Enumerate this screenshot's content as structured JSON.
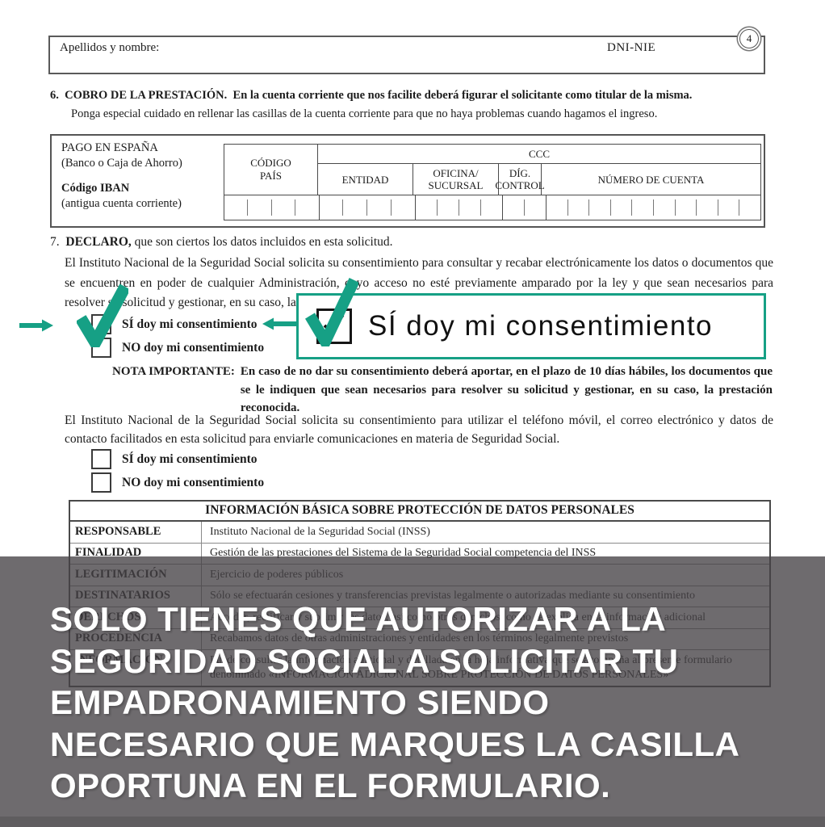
{
  "header": {
    "apellidos_label": "Apellidos y nombre:",
    "dni_label": "DNI-NIE",
    "page_number": "4"
  },
  "section6": {
    "number": "6.",
    "title": "COBRO DE LA PRESTACIÓN.",
    "title_rest": "En la cuenta corriente que nos facilite deberá figurar el solicitante como titular de la misma.",
    "subtitle": "Ponga especial cuidado en rellenar las casillas de la cuenta corriente para que no haya problemas cuando hagamos el ingreso."
  },
  "bank": {
    "pago_line1": "PAGO EN ESPAÑA",
    "pago_line2": "(Banco o Caja de Ahorro)",
    "iban_label": "Código IBAN",
    "iban_sub": "(antigua cuenta corriente)",
    "col_codigo_l1": "CÓDIGO",
    "col_codigo_l2": "PAÍS",
    "col_ccc": "CCC",
    "col_entidad": "ENTIDAD",
    "col_oficina_l1": "OFICINA/",
    "col_oficina_l2": "SUCURSAL",
    "col_dig_l1": "DÍG.",
    "col_dig_l2": "CONTROL",
    "col_cuenta": "NÚMERO DE CUENTA",
    "digit_groups": [
      4,
      4,
      4,
      2,
      10
    ]
  },
  "section7": {
    "number": "7.",
    "title": "DECLARO,",
    "title_rest": "que son ciertos los datos incluidos en esta solicitud.",
    "paragraph1": "El Instituto Nacional de la Seguridad Social solicita su consentimiento para consultar y recabar electrónicamente los datos o documentos que se encuentren en poder de cualquier Administración, cuyo acceso no esté previamente amparado por la ley y que sean necesarios para resolver su solicitud y gestionar, en su caso, la prestación reconocida.",
    "consent1_yes": "SÍ doy mi consentimiento",
    "consent1_no": "NO doy mi consentimiento",
    "nota_label": "NOTA IMPORTANTE:",
    "nota_text": "En caso de no dar su consentimiento deberá aportar, en el plazo de 10 días hábiles, los documentos que se le indiquen que sean necesarios para resolver su solicitud y gestionar, en su caso, la prestación reconocida.",
    "paragraph2": "El Instituto Nacional de la Seguridad Social solicita su consentimiento para utilizar el teléfono móvil, el correo electrónico y datos de contacto facilitados en esta solicitud para enviarle comunicaciones en materia de Seguridad Social.",
    "consent2_yes": "SÍ doy mi consentimiento",
    "consent2_no": "NO doy mi consentimiento"
  },
  "callout": {
    "text": "SÍ doy mi consentimiento"
  },
  "protection_table": {
    "title": "INFORMACIÓN BÁSICA SOBRE PROTECCIÓN DE DATOS PERSONALES",
    "rows": [
      {
        "label": "RESPONSABLE",
        "value": "Instituto Nacional de la Seguridad Social (INSS)"
      },
      {
        "label": "FINALIDAD",
        "value": "Gestión de las prestaciones del Sistema de la Seguridad Social competencia del INSS"
      },
      {
        "label": "LEGITIMACIÓN",
        "value": "Ejercicio de poderes públicos"
      },
      {
        "label": "DESTINATARIOS",
        "value": "Sólo se efectuarán cesiones y transferencias previstas legalmente o autorizadas mediante su consentimiento"
      },
      {
        "label": "DERECHOS",
        "value": "Acceder, rectificar y suprimir los datos, así como otros derechos, como se explica en la información adicional"
      },
      {
        "label": "PROCEDENCIA",
        "value": "Recabamos datos de otras administraciones y entidades en los términos legalmente previstos"
      },
      {
        "label": "INFORMACIÓN",
        "value": "Puede consultar la información adicional y detallada en la hoja informativa que se acompaña al presente formulario denominado «INFORMACIÓN ADICIONAL SOBRE PROTECCIÓN DE DATOS PERSONALES»"
      }
    ]
  },
  "overlay": {
    "lines": [
      "SOLO TIENES QUE AUTORIZAR A LA",
      "SEGURIDAD SOCIAL A SOLICITAR TU",
      "EMPADRONAMIENTO SIENDO",
      "NECESARIO QUE MARQUES LA CASILLA",
      "OPORTUNA EN EL FORMULARIO."
    ]
  },
  "colors": {
    "accent_green": "#16a085",
    "overlay_gray": "#757175"
  }
}
